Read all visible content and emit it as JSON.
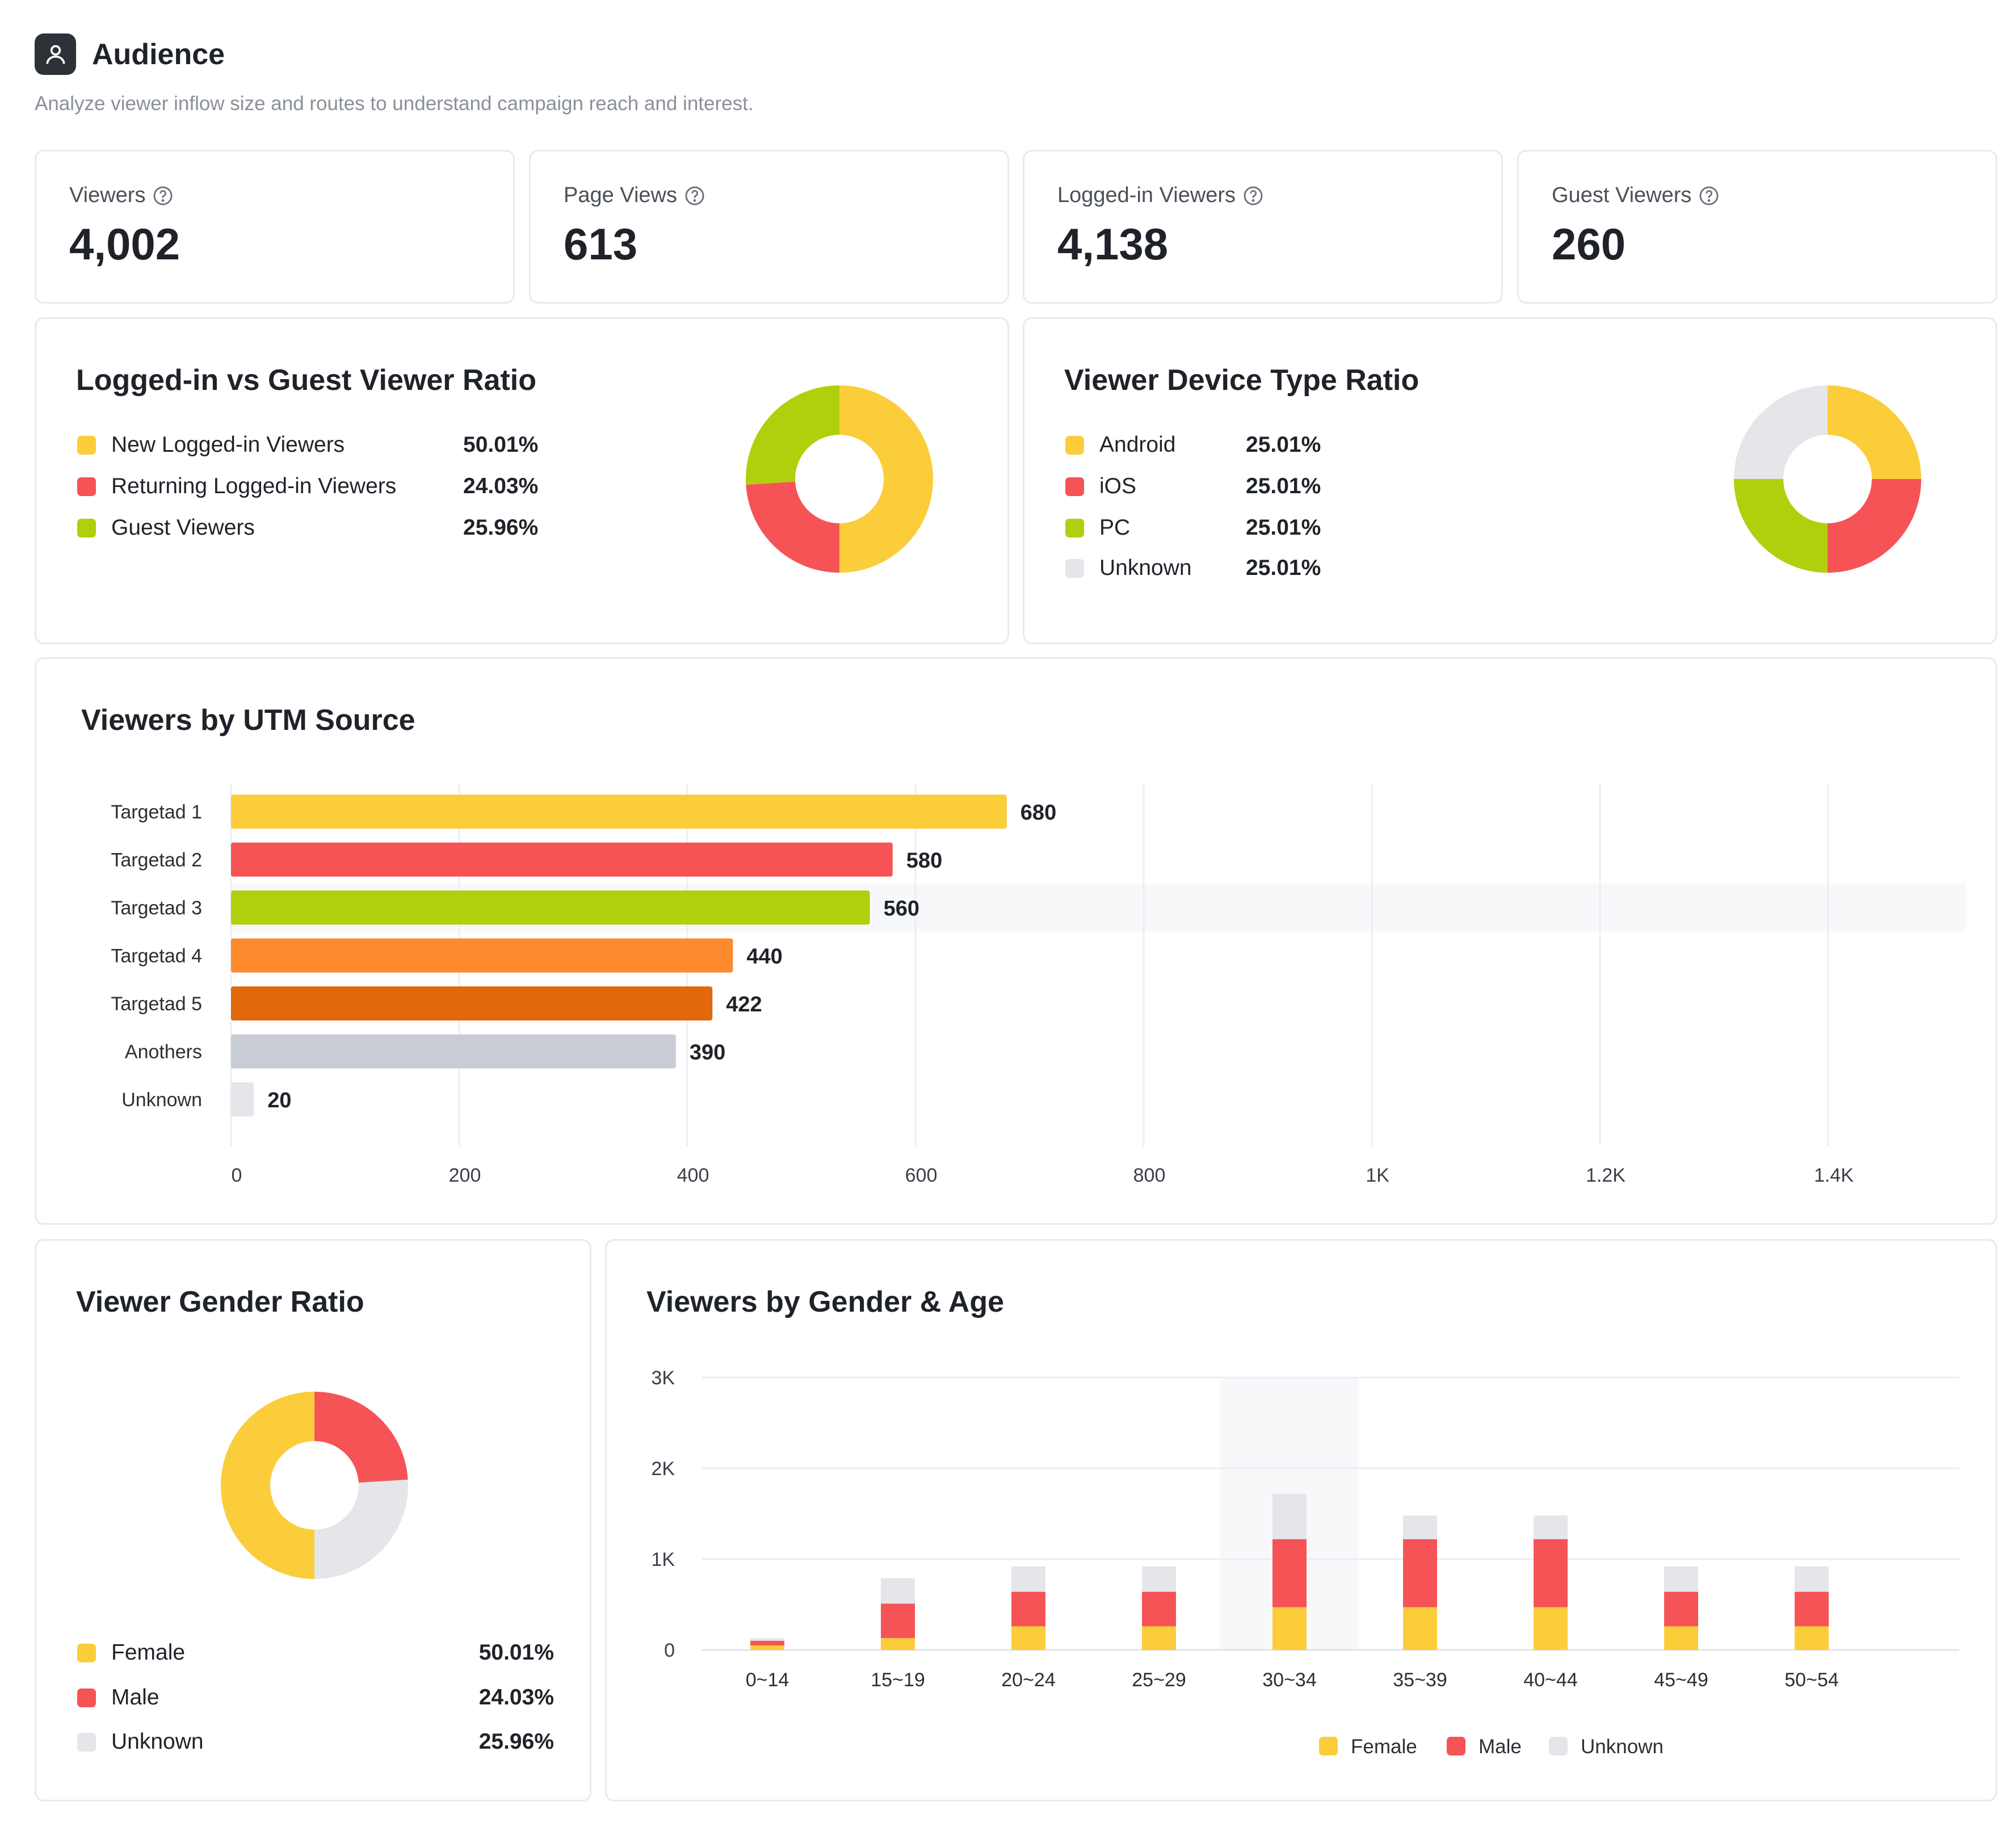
{
  "header": {
    "title": "Audience",
    "subtitle": "Analyze viewer inflow size and routes to understand campaign reach and interest.",
    "icon": "user-icon"
  },
  "metrics": [
    {
      "label": "Viewers",
      "value": "4,002"
    },
    {
      "label": "Page Views",
      "value": "613"
    },
    {
      "label": "Logged-in Viewers",
      "value": "4,138"
    },
    {
      "label": "Guest Viewers",
      "value": "260"
    }
  ],
  "colors": {
    "yellow": "#FCCD3A",
    "red": "#F65356",
    "green": "#B1CF0C",
    "orange": "#FE8A2E",
    "dark_orange": "#E1690B",
    "gray": "#C8CDD5",
    "light_gray": "#E4E6EA"
  },
  "login_ratio": {
    "title": "Logged-in vs Guest Viewer Ratio",
    "items": [
      {
        "name": "New Logged-in Viewers",
        "value": "50.01%",
        "color": "#FCCD3A"
      },
      {
        "name": "Returning Logged-in Viewers",
        "value": "24.03%",
        "color": "#F65356"
      },
      {
        "name": "Guest Viewers",
        "value": "25.96%",
        "color": "#B1CF0C"
      }
    ]
  },
  "device_ratio": {
    "title": "Viewer Device Type Ratio",
    "items": [
      {
        "name": "Android",
        "value": "25.01%",
        "color": "#FCCD3A"
      },
      {
        "name": "iOS",
        "value": "25.01%",
        "color": "#F65356"
      },
      {
        "name": "PC",
        "value": "25.01%",
        "color": "#B1CF0C"
      },
      {
        "name": "Unknown",
        "value": "25.01%",
        "color": "#E4E6EA"
      }
    ]
  },
  "gender_ratio": {
    "title": "Viewer Gender Ratio",
    "items": [
      {
        "name": "Female",
        "value": "50.01%",
        "color": "#FCCD3A"
      },
      {
        "name": "Male",
        "value": "24.03%",
        "color": "#F65356"
      },
      {
        "name": "Unknown",
        "value": "25.96%",
        "color": "#E4E6EA"
      }
    ]
  },
  "chart_data": [
    {
      "id": "login_pie",
      "type": "pie",
      "title": "Logged-in vs Guest Viewer Ratio",
      "categories": [
        "New Logged-in Viewers",
        "Returning Logged-in Viewers",
        "Guest Viewers"
      ],
      "values": [
        50.01,
        24.03,
        25.96
      ],
      "colors": [
        "#FCCD3A",
        "#F65356",
        "#B1CF0C"
      ]
    },
    {
      "id": "device_pie",
      "type": "pie",
      "title": "Viewer Device Type Ratio",
      "categories": [
        "Android",
        "iOS",
        "PC",
        "Unknown"
      ],
      "values": [
        25.01,
        25.01,
        25.01,
        25.01
      ],
      "colors": [
        "#FCCD3A",
        "#F65356",
        "#B1CF0C",
        "#E4E6EA"
      ]
    },
    {
      "id": "utm_bar",
      "type": "bar",
      "orientation": "horizontal",
      "title": "Viewers by UTM Source",
      "categories": [
        "Targetad 1",
        "Targetad 2",
        "Targetad 3",
        "Targetad 4",
        "Targetad 5",
        "Anothers",
        "Unknown"
      ],
      "values": [
        680,
        580,
        560,
        440,
        422,
        390,
        20
      ],
      "colors": [
        "#FCCD3A",
        "#F65356",
        "#B1CF0C",
        "#FE8A2E",
        "#E1690B",
        "#C8CDD5",
        "#E4E6EA"
      ],
      "xticks": [
        "0",
        "200",
        "400",
        "600",
        "800",
        "1K",
        "1.2K",
        "1.4K"
      ],
      "xlim": [
        0,
        1400
      ],
      "grid": true
    },
    {
      "id": "gender_pie",
      "type": "pie",
      "title": "Viewer Gender Ratio",
      "categories": [
        "Female",
        "Male",
        "Unknown"
      ],
      "values": [
        50.01,
        24.03,
        25.96
      ],
      "colors": [
        "#FCCD3A",
        "#F65356",
        "#E4E6EA"
      ]
    },
    {
      "id": "gender_age_bar",
      "type": "bar",
      "stacked": true,
      "title": "Viewers by Gender & Age",
      "categories": [
        "0~14",
        "15~19",
        "20~24",
        "25~29",
        "30~34",
        "35~39",
        "40~44",
        "45~49",
        "50~54"
      ],
      "series": [
        {
          "name": "Female",
          "color": "#FCCD3A",
          "values": [
            50,
            130,
            260,
            260,
            470,
            470,
            470,
            260,
            260
          ]
        },
        {
          "name": "Male",
          "color": "#F65356",
          "values": [
            50,
            380,
            380,
            380,
            750,
            750,
            750,
            380,
            380
          ]
        },
        {
          "name": "Unknown",
          "color": "#E4E6EA",
          "values": [
            30,
            280,
            280,
            280,
            500,
            260,
            260,
            280,
            280
          ]
        }
      ],
      "yticks": [
        "0",
        "1K",
        "2K",
        "3K"
      ],
      "ylim": [
        0,
        3000
      ],
      "legend": "bottom",
      "grid": true
    }
  ]
}
